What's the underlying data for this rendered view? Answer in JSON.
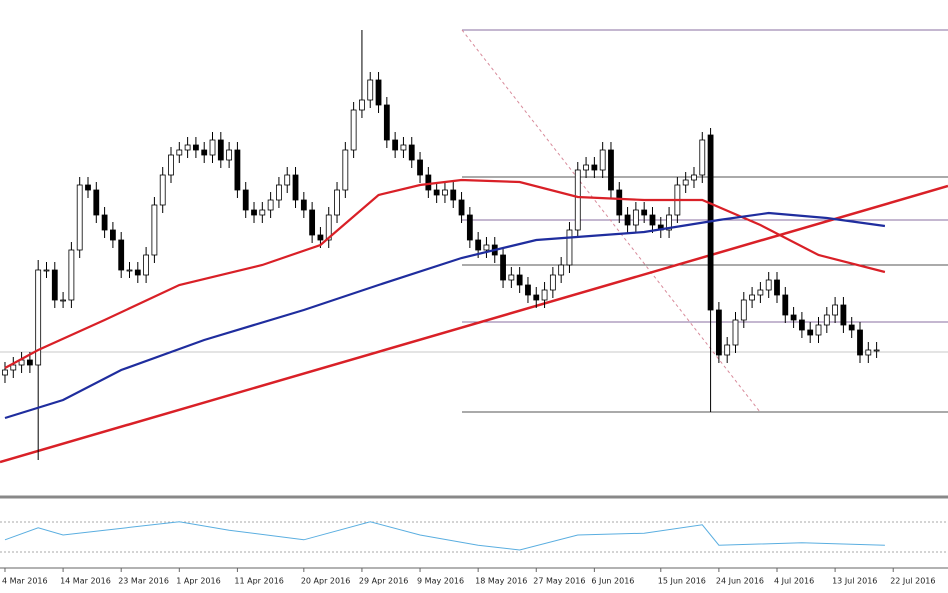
{
  "chart_data": {
    "type": "candlestick",
    "xlim": [
      -0.6,
      113.6
    ],
    "ylim": [
      5,
      500
    ],
    "xticks": [
      {
        "value": 0,
        "label": "4 Mar 2016"
      },
      {
        "value": 7,
        "label": "14 Mar 2016"
      },
      {
        "value": 14,
        "label": "23 Mar 2016"
      },
      {
        "value": 21,
        "label": "1 Apr 2016"
      },
      {
        "value": 28,
        "label": "11 Apr 2016"
      },
      {
        "value": 36,
        "label": "20 Apr 2016"
      },
      {
        "value": 43,
        "label": "29 Apr 2016"
      },
      {
        "value": 50,
        "label": "9 May 2016"
      },
      {
        "value": 57,
        "label": "18 May 2016"
      },
      {
        "value": 64,
        "label": "27 May 2016"
      },
      {
        "value": 71,
        "label": "6 Jun 2016"
      },
      {
        "value": 79,
        "label": "15 Jun 2016"
      },
      {
        "value": 86,
        "label": "24 Jun 2016"
      },
      {
        "value": 93,
        "label": "4 Jul 2016"
      },
      {
        "value": 100,
        "label": "13 Jul 2016"
      },
      {
        "value": 107,
        "label": "22 Jul 2016"
      }
    ],
    "open": [
      125,
      130,
      135,
      140,
      135,
      230,
      230,
      200,
      200,
      250,
      315,
      310,
      285,
      270,
      260,
      230,
      230,
      225,
      245,
      295,
      325,
      345,
      350,
      355,
      350,
      345,
      360,
      340,
      350,
      310,
      290,
      285,
      290,
      300,
      315,
      325,
      300,
      290,
      265,
      260,
      285,
      310,
      350,
      390,
      400,
      420,
      395,
      360,
      350,
      355,
      340,
      325,
      310,
      305,
      310,
      300,
      285,
      260,
      250,
      255,
      245,
      220,
      225,
      215,
      205,
      200,
      210,
      225,
      235,
      270,
      330,
      335,
      330,
      350,
      310,
      285,
      275,
      290,
      285,
      275,
      270,
      285,
      315,
      320,
      325,
      365,
      190,
      145,
      155,
      180,
      200,
      205,
      210,
      220,
      205,
      185,
      180,
      170,
      165,
      175,
      185,
      195,
      175,
      170,
      145,
      150
    ],
    "high": [
      138,
      143,
      148,
      148,
      240,
      238,
      238,
      208,
      258,
      323,
      323,
      318,
      293,
      278,
      268,
      238,
      238,
      253,
      303,
      333,
      353,
      358,
      363,
      363,
      358,
      368,
      368,
      358,
      358,
      318,
      298,
      298,
      308,
      323,
      333,
      333,
      308,
      298,
      273,
      293,
      318,
      358,
      398,
      470,
      428,
      428,
      403,
      368,
      363,
      363,
      348,
      333,
      318,
      318,
      318,
      308,
      293,
      268,
      263,
      263,
      253,
      233,
      233,
      223,
      213,
      218,
      233,
      243,
      278,
      338,
      343,
      343,
      358,
      358,
      318,
      293,
      298,
      298,
      293,
      283,
      293,
      323,
      328,
      333,
      368,
      372,
      198,
      163,
      188,
      208,
      213,
      218,
      228,
      228,
      213,
      193,
      188,
      178,
      183,
      193,
      203,
      203,
      183,
      178,
      158,
      158
    ],
    "low": [
      117,
      122,
      127,
      127,
      40,
      222,
      192,
      192,
      192,
      242,
      302,
      277,
      262,
      252,
      222,
      222,
      217,
      217,
      237,
      287,
      317,
      337,
      342,
      342,
      337,
      337,
      332,
      332,
      302,
      282,
      277,
      277,
      282,
      292,
      307,
      292,
      282,
      257,
      252,
      252,
      277,
      302,
      342,
      382,
      392,
      387,
      352,
      342,
      342,
      332,
      317,
      302,
      297,
      297,
      292,
      277,
      252,
      242,
      242,
      237,
      212,
      212,
      207,
      197,
      192,
      192,
      202,
      217,
      227,
      262,
      322,
      322,
      322,
      302,
      277,
      267,
      267,
      277,
      267,
      262,
      262,
      277,
      307,
      312,
      317,
      88,
      137,
      137,
      147,
      172,
      192,
      197,
      202,
      197,
      177,
      172,
      162,
      157,
      157,
      167,
      177,
      167,
      162,
      137,
      137,
      142
    ],
    "close": [
      130,
      135,
      140,
      135,
      230,
      230,
      200,
      200,
      250,
      315,
      310,
      285,
      270,
      260,
      230,
      230,
      225,
      245,
      295,
      325,
      345,
      350,
      355,
      350,
      345,
      360,
      340,
      350,
      310,
      290,
      285,
      290,
      300,
      315,
      325,
      300,
      290,
      265,
      260,
      285,
      310,
      350,
      390,
      400,
      420,
      395,
      360,
      350,
      355,
      340,
      325,
      310,
      305,
      310,
      300,
      285,
      260,
      250,
      255,
      245,
      220,
      225,
      215,
      205,
      200,
      210,
      225,
      235,
      270,
      330,
      335,
      330,
      350,
      310,
      285,
      275,
      290,
      285,
      275,
      270,
      285,
      315,
      320,
      325,
      360,
      190,
      145,
      155,
      180,
      200,
      205,
      210,
      220,
      205,
      185,
      180,
      170,
      165,
      175,
      185,
      195,
      175,
      170,
      145,
      150,
      150
    ],
    "bull_color": "#ffffff",
    "bear_color": "#000000",
    "lines": [
      {
        "color": "#d92027",
        "x": [
          0,
          4,
          12,
          21,
          31,
          38,
          45,
          50,
          55,
          62,
          69,
          77,
          84,
          91,
          98,
          106
        ],
        "values": [
          132,
          150,
          180,
          215,
          235,
          255,
          305,
          315,
          320,
          318,
          303,
          300,
          300,
          275,
          245,
          228
        ]
      },
      {
        "color": "#1f2d9e",
        "x": [
          0,
          7,
          14,
          24,
          36,
          45,
          55,
          64,
          77,
          86,
          92,
          99,
          106
        ],
        "values": [
          82,
          100,
          130,
          160,
          190,
          215,
          242,
          260,
          268,
          280,
          287,
          282,
          274
        ]
      }
    ],
    "oscillator": {
      "color": "#5aaee0",
      "ylim": [
        0,
        100
      ],
      "x": [
        0,
        4,
        7,
        12,
        21,
        27,
        36,
        44,
        50,
        57,
        62,
        69,
        77,
        84,
        86,
        96,
        106
      ],
      "values": [
        42,
        62,
        50,
        58,
        72,
        58,
        42,
        72,
        50,
        33,
        25,
        50,
        53,
        67,
        33,
        37,
        33
      ]
    }
  }
}
